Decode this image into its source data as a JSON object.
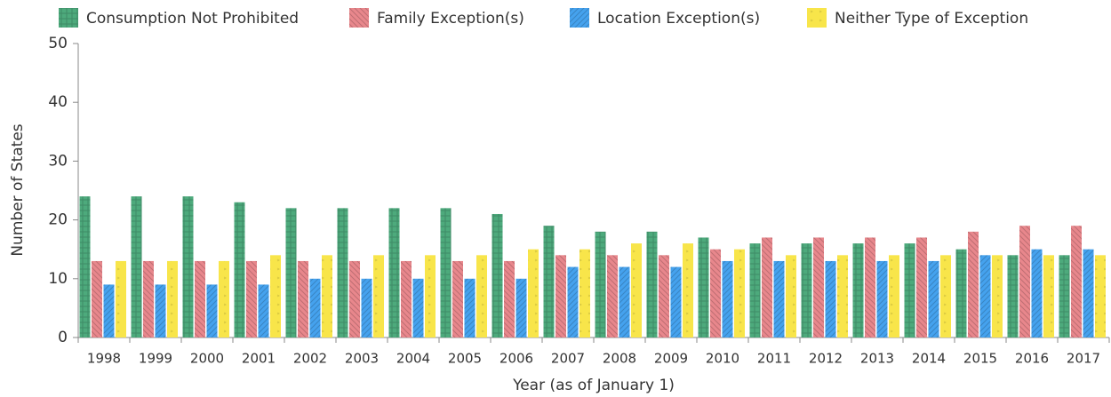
{
  "chart_data": {
    "type": "bar",
    "x_label": "Year (as of January 1)",
    "y_label": "Number of States",
    "categories": [
      "1998",
      "1999",
      "2000",
      "2001",
      "2002",
      "2003",
      "2004",
      "2005",
      "2006",
      "2007",
      "2008",
      "2009",
      "2010",
      "2011",
      "2012",
      "2013",
      "2014",
      "2015",
      "2016",
      "2017"
    ],
    "series": [
      {
        "name": "Consumption Not Prohibited",
        "color": "#4daa7c",
        "values": [
          24,
          24,
          24,
          23,
          22,
          22,
          22,
          22,
          21,
          19,
          18,
          18,
          17,
          16,
          16,
          16,
          16,
          15,
          14,
          14
        ]
      },
      {
        "name": "Family Exception(s)",
        "color": "#e8878c",
        "values": [
          13,
          13,
          13,
          13,
          13,
          13,
          13,
          13,
          13,
          14,
          14,
          14,
          15,
          17,
          17,
          17,
          17,
          18,
          19,
          19
        ]
      },
      {
        "name": "Location Exception(s)",
        "color": "#45a2ee",
        "values": [
          9,
          9,
          9,
          9,
          10,
          10,
          10,
          10,
          10,
          12,
          12,
          12,
          13,
          13,
          13,
          13,
          13,
          14,
          15,
          15
        ]
      },
      {
        "name": "Neither Type of Exception",
        "color": "#f8e54a",
        "values": [
          13,
          13,
          13,
          14,
          14,
          14,
          14,
          14,
          15,
          15,
          16,
          16,
          15,
          14,
          14,
          14,
          14,
          14,
          14,
          14
        ]
      }
    ],
    "ylim": [
      0,
      50
    ],
    "yticks": [
      0,
      10,
      20,
      30,
      40,
      50
    ],
    "legend": "top"
  }
}
